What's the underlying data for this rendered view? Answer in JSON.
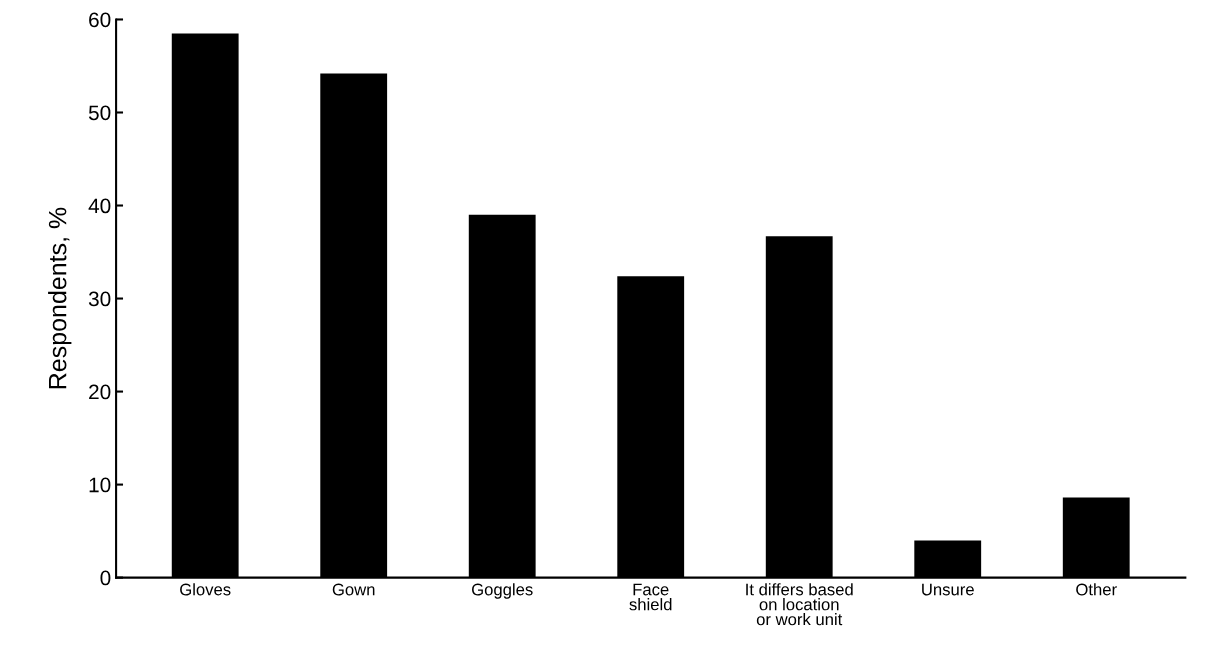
{
  "chart_data": {
    "type": "bar",
    "ylabel": "Respondents, %",
    "categories": [
      "Gloves",
      "Gown",
      "Goggles",
      "Face\nshield",
      "It differs based\non location\nor work unit",
      "Unsure",
      "Other"
    ],
    "values": [
      58.5,
      54.2,
      39.0,
      32.4,
      36.7,
      4.0,
      8.6
    ],
    "color": "#000000",
    "ylim": [
      0,
      60
    ],
    "yticks": [
      0,
      10,
      20,
      30,
      40,
      50,
      60
    ],
    "grid": false
  }
}
